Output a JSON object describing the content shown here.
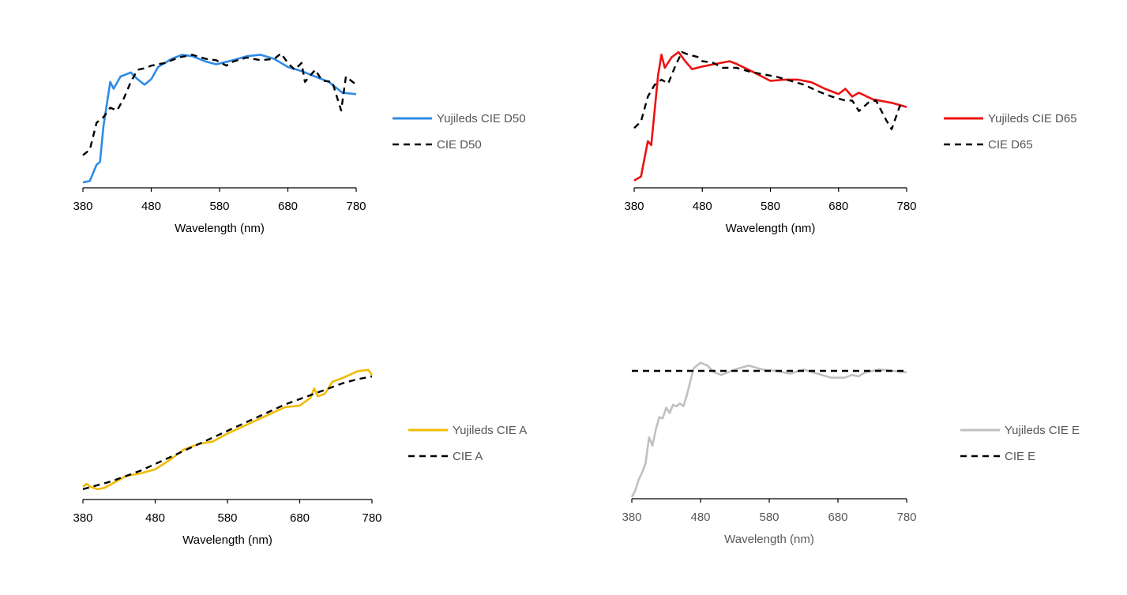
{
  "chart_data": [
    {
      "type": "line",
      "xlabel": "Wavelength (nm)",
      "ylabel": "",
      "xlim": [
        380,
        780
      ],
      "ylim": [
        0,
        1
      ],
      "x_ticks": [
        "380",
        "480",
        "580",
        "680",
        "780"
      ],
      "legend": "right",
      "series": [
        {
          "name": "Yujileds CIE D50",
          "color": "#2f8be6",
          "style": "solid",
          "points": [
            [
              380,
              0.04
            ],
            [
              390,
              0.05
            ],
            [
              400,
              0.17
            ],
            [
              405,
              0.19
            ],
            [
              410,
              0.45
            ],
            [
              420,
              0.78
            ],
            [
              425,
              0.73
            ],
            [
              435,
              0.82
            ],
            [
              450,
              0.85
            ],
            [
              460,
              0.8
            ],
            [
              470,
              0.76
            ],
            [
              480,
              0.8
            ],
            [
              490,
              0.89
            ],
            [
              500,
              0.92
            ],
            [
              510,
              0.95
            ],
            [
              525,
              0.98
            ],
            [
              540,
              0.97
            ],
            [
              560,
              0.93
            ],
            [
              575,
              0.91
            ],
            [
              600,
              0.94
            ],
            [
              620,
              0.97
            ],
            [
              640,
              0.98
            ],
            [
              660,
              0.95
            ],
            [
              680,
              0.89
            ],
            [
              700,
              0.86
            ],
            [
              720,
              0.82
            ],
            [
              740,
              0.78
            ],
            [
              760,
              0.7
            ],
            [
              780,
              0.69
            ]
          ]
        },
        {
          "name": "CIE D50",
          "color": "#000000",
          "style": "dashed",
          "points": [
            [
              380,
              0.24
            ],
            [
              390,
              0.28
            ],
            [
              400,
              0.48
            ],
            [
              410,
              0.52
            ],
            [
              420,
              0.59
            ],
            [
              430,
              0.57
            ],
            [
              440,
              0.66
            ],
            [
              450,
              0.78
            ],
            [
              460,
              0.87
            ],
            [
              470,
              0.88
            ],
            [
              480,
              0.9
            ],
            [
              490,
              0.91
            ],
            [
              500,
              0.92
            ],
            [
              520,
              0.96
            ],
            [
              540,
              0.98
            ],
            [
              560,
              0.95
            ],
            [
              575,
              0.94
            ],
            [
              590,
              0.9
            ],
            [
              600,
              0.93
            ],
            [
              620,
              0.96
            ],
            [
              640,
              0.94
            ],
            [
              660,
              0.95
            ],
            [
              670,
              0.99
            ],
            [
              680,
              0.92
            ],
            [
              690,
              0.87
            ],
            [
              700,
              0.92
            ],
            [
              705,
              0.78
            ],
            [
              720,
              0.87
            ],
            [
              730,
              0.79
            ],
            [
              745,
              0.78
            ],
            [
              758,
              0.57
            ],
            [
              765,
              0.82
            ],
            [
              780,
              0.76
            ]
          ]
        }
      ]
    },
    {
      "type": "line",
      "xlabel": "Wavelength (nm)",
      "ylabel": "",
      "xlim": [
        380,
        780
      ],
      "ylim": [
        0,
        1
      ],
      "x_ticks": [
        "380",
        "480",
        "580",
        "680",
        "780"
      ],
      "legend": "right",
      "series": [
        {
          "name": "Yujileds CIE D65",
          "color": "#ee1111",
          "style": "solid",
          "points": [
            [
              380,
              0.02
            ],
            [
              390,
              0.05
            ],
            [
              400,
              0.32
            ],
            [
              405,
              0.29
            ],
            [
              415,
              0.82
            ],
            [
              420,
              0.98
            ],
            [
              425,
              0.88
            ],
            [
              435,
              0.96
            ],
            [
              445,
              1.0
            ],
            [
              455,
              0.93
            ],
            [
              465,
              0.87
            ],
            [
              480,
              0.89
            ],
            [
              500,
              0.91
            ],
            [
              520,
              0.93
            ],
            [
              530,
              0.91
            ],
            [
              550,
              0.86
            ],
            [
              580,
              0.78
            ],
            [
              600,
              0.79
            ],
            [
              620,
              0.79
            ],
            [
              640,
              0.77
            ],
            [
              660,
              0.72
            ],
            [
              680,
              0.68
            ],
            [
              690,
              0.72
            ],
            [
              700,
              0.66
            ],
            [
              710,
              0.69
            ],
            [
              730,
              0.64
            ],
            [
              760,
              0.61
            ],
            [
              780,
              0.58
            ]
          ]
        },
        {
          "name": "CIE D65",
          "color": "#000000",
          "style": "dashed",
          "points": [
            [
              380,
              0.42
            ],
            [
              390,
              0.47
            ],
            [
              400,
              0.66
            ],
            [
              410,
              0.75
            ],
            [
              420,
              0.79
            ],
            [
              430,
              0.76
            ],
            [
              440,
              0.89
            ],
            [
              450,
              1.0
            ],
            [
              460,
              0.98
            ],
            [
              475,
              0.96
            ],
            [
              480,
              0.93
            ],
            [
              495,
              0.92
            ],
            [
              510,
              0.88
            ],
            [
              530,
              0.88
            ],
            [
              550,
              0.85
            ],
            [
              570,
              0.83
            ],
            [
              590,
              0.81
            ],
            [
              610,
              0.78
            ],
            [
              630,
              0.75
            ],
            [
              650,
              0.7
            ],
            [
              670,
              0.66
            ],
            [
              690,
              0.63
            ],
            [
              700,
              0.63
            ],
            [
              710,
              0.55
            ],
            [
              725,
              0.62
            ],
            [
              735,
              0.63
            ],
            [
              750,
              0.48
            ],
            [
              758,
              0.41
            ],
            [
              770,
              0.59
            ],
            [
              775,
              0.56
            ]
          ]
        }
      ]
    },
    {
      "type": "line",
      "xlabel": "Wavelength (nm)",
      "ylabel": "",
      "xlim": [
        380,
        780
      ],
      "ylim": [
        0,
        1
      ],
      "x_ticks": [
        "380",
        "480",
        "580",
        "680",
        "780"
      ],
      "legend": "right",
      "series": [
        {
          "name": "Yujileds CIE A",
          "color": "#f2bb05",
          "style": "solid",
          "points": [
            [
              380,
              0.08
            ],
            [
              385,
              0.1
            ],
            [
              390,
              0.08
            ],
            [
              400,
              0.06
            ],
            [
              410,
              0.07
            ],
            [
              420,
              0.1
            ],
            [
              440,
              0.16
            ],
            [
              460,
              0.18
            ],
            [
              480,
              0.21
            ],
            [
              500,
              0.28
            ],
            [
              520,
              0.36
            ],
            [
              540,
              0.4
            ],
            [
              560,
              0.42
            ],
            [
              580,
              0.48
            ],
            [
              600,
              0.53
            ],
            [
              620,
              0.58
            ],
            [
              640,
              0.63
            ],
            [
              660,
              0.68
            ],
            [
              680,
              0.69
            ],
            [
              695,
              0.75
            ],
            [
              700,
              0.82
            ],
            [
              705,
              0.76
            ],
            [
              715,
              0.78
            ],
            [
              725,
              0.87
            ],
            [
              740,
              0.9
            ],
            [
              760,
              0.95
            ],
            [
              775,
              0.96
            ],
            [
              780,
              0.92
            ]
          ]
        },
        {
          "name": "CIE A",
          "color": "#000000",
          "style": "dashed",
          "points": [
            [
              380,
              0.06
            ],
            [
              400,
              0.09
            ],
            [
              420,
              0.12
            ],
            [
              440,
              0.16
            ],
            [
              460,
              0.2
            ],
            [
              480,
              0.25
            ],
            [
              500,
              0.3
            ],
            [
              520,
              0.35
            ],
            [
              540,
              0.4
            ],
            [
              560,
              0.45
            ],
            [
              580,
              0.5
            ],
            [
              600,
              0.55
            ],
            [
              620,
              0.6
            ],
            [
              640,
              0.65
            ],
            [
              660,
              0.7
            ],
            [
              680,
              0.74
            ],
            [
              700,
              0.78
            ],
            [
              720,
              0.82
            ],
            [
              740,
              0.86
            ],
            [
              760,
              0.89
            ],
            [
              780,
              0.91
            ]
          ]
        }
      ]
    },
    {
      "type": "line",
      "xlabel": "Wavelength (nm)",
      "ylabel": "",
      "xlim": [
        380,
        780
      ],
      "ylim": [
        0,
        1
      ],
      "x_ticks": [
        "380",
        "480",
        "580",
        "680",
        "780"
      ],
      "legend": "right",
      "series": [
        {
          "name": "Yujileds CIE E",
          "color": "#c0c0c0",
          "style": "solid",
          "points": [
            [
              380,
              0.0
            ],
            [
              385,
              0.05
            ],
            [
              390,
              0.13
            ],
            [
              395,
              0.18
            ],
            [
              400,
              0.25
            ],
            [
              405,
              0.44
            ],
            [
              410,
              0.38
            ],
            [
              415,
              0.5
            ],
            [
              420,
              0.59
            ],
            [
              425,
              0.58
            ],
            [
              430,
              0.66
            ],
            [
              435,
              0.62
            ],
            [
              440,
              0.68
            ],
            [
              445,
              0.67
            ],
            [
              450,
              0.69
            ],
            [
              455,
              0.67
            ],
            [
              460,
              0.75
            ],
            [
              470,
              0.95
            ],
            [
              480,
              0.99
            ],
            [
              490,
              0.97
            ],
            [
              500,
              0.92
            ],
            [
              510,
              0.9
            ],
            [
              530,
              0.94
            ],
            [
              550,
              0.97
            ],
            [
              570,
              0.94
            ],
            [
              590,
              0.93
            ],
            [
              610,
              0.91
            ],
            [
              630,
              0.94
            ],
            [
              650,
              0.91
            ],
            [
              670,
              0.88
            ],
            [
              690,
              0.88
            ],
            [
              700,
              0.9
            ],
            [
              710,
              0.89
            ],
            [
              720,
              0.92
            ],
            [
              740,
              0.94
            ],
            [
              760,
              0.93
            ],
            [
              780,
              0.92
            ]
          ]
        },
        {
          "name": "CIE E",
          "color": "#000000",
          "style": "dashed",
          "points": [
            [
              380,
              0.93
            ],
            [
              780,
              0.93
            ]
          ]
        }
      ]
    }
  ]
}
